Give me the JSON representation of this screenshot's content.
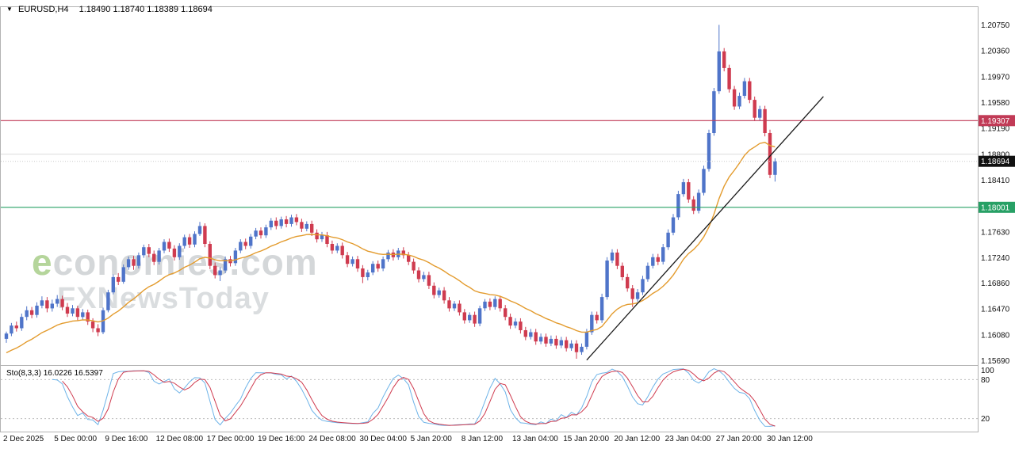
{
  "header": {
    "dropdown_icon": "▼",
    "symbol": "EURUSD,H4",
    "ohlc": "1.18490 1.18740 1.18389 1.18694"
  },
  "watermark": {
    "line1": "economies.com",
    "line2": "FXNewsToday"
  },
  "colors": {
    "up": "#4f74c9",
    "down": "#cf3b4f",
    "ma": "#e39b2d",
    "trendline": "#1a1a1a",
    "resistance": "#c13a56",
    "support": "#27a065",
    "current": "#111111",
    "grid": "#dcdcdc",
    "panel_border": "#b3b3b3",
    "stoch_k": "#6db3e8",
    "stoch_d": "#cf3b4f",
    "level": "#bdbdbd",
    "watermark": "#d5d8da"
  },
  "chart_data": {
    "type": "candlestick",
    "symbol": "EURUSD",
    "timeframe": "H4",
    "current_ohlc": {
      "open": "1.18490",
      "high": "1.18740",
      "low": "1.18389",
      "close": "1.18694"
    },
    "y_axis": {
      "min": 1.15625,
      "max": 1.21005,
      "tick_labels": [
        "1.20750",
        "1.20360",
        "1.19970",
        "1.19580",
        "1.19190",
        "1.18800",
        "1.18410",
        "1.17630",
        "1.17240",
        "1.16860",
        "1.16470",
        "1.16080",
        "1.15690"
      ]
    },
    "x_axis": {
      "label_every": 10,
      "labels": [
        "2 Dec 2025",
        "5 Dec 00:00",
        "9 Dec 16:00",
        "12 Dec 08:00",
        "17 Dec 00:00",
        "19 Dec 16:00",
        "24 Dec 08:00",
        "30 Dec 04:00",
        "5 Jan 20:00",
        "8 Jan 12:00",
        "13 Jan 04:00",
        "15 Jan 20:00",
        "20 Jan 12:00",
        "23 Jan 04:00",
        "27 Jan 20:00",
        "30 Jan 12:00"
      ]
    },
    "overlays": {
      "ema": {
        "period": 20,
        "seed": 1.1578
      },
      "trendline": {
        "bar1": 114,
        "price1": 1.157,
        "bar2": 160.5,
        "price2": 1.1967
      },
      "gridline_price": 1.188,
      "current_price": {
        "price": 1.18694,
        "label": "1.18694",
        "color": "#111111"
      },
      "hlines": [
        {
          "price": 1.19307,
          "label": "1.19307",
          "color": "#c13a56",
          "role": "resistance"
        },
        {
          "price": 1.18001,
          "label": "1.18001",
          "color": "#27a065",
          "role": "support"
        }
      ]
    },
    "indicator": {
      "name": "Sto(8,3,3)",
      "label": "Sto(8,3,3) 16.0226 16.5397",
      "k_value": 16.0226,
      "d_value": 16.5397,
      "k_period": 8,
      "d_period": 3,
      "slowing": 3,
      "levels": [
        100,
        80,
        20
      ]
    },
    "candles": [
      [
        1.1602,
        1.1613,
        1.1596,
        1.161
      ],
      [
        1.161,
        1.1626,
        1.1606,
        1.1622
      ],
      [
        1.1622,
        1.1628,
        1.1613,
        1.1618
      ],
      [
        1.1618,
        1.164,
        1.1614,
        1.1635
      ],
      [
        1.1635,
        1.1651,
        1.163,
        1.1645
      ],
      [
        1.1645,
        1.165,
        1.1633,
        1.1638
      ],
      [
        1.1638,
        1.1657,
        1.1634,
        1.1652
      ],
      [
        1.1652,
        1.1666,
        1.1648,
        1.166
      ],
      [
        1.166,
        1.1665,
        1.1642,
        1.1648
      ],
      [
        1.1648,
        1.1661,
        1.1643,
        1.1655
      ],
      [
        1.1655,
        1.1668,
        1.165,
        1.1662
      ],
      [
        1.1662,
        1.1667,
        1.1645,
        1.165
      ],
      [
        1.165,
        1.1656,
        1.1635,
        1.164
      ],
      [
        1.164,
        1.1653,
        1.1636,
        1.1648
      ],
      [
        1.1648,
        1.1652,
        1.163,
        1.1635
      ],
      [
        1.1635,
        1.1647,
        1.1631,
        1.1642
      ],
      [
        1.1642,
        1.1646,
        1.1623,
        1.1628
      ],
      [
        1.1628,
        1.1633,
        1.1612,
        1.1618
      ],
      [
        1.1618,
        1.1624,
        1.1606,
        1.1612
      ],
      [
        1.1612,
        1.1649,
        1.1609,
        1.1645
      ],
      [
        1.1645,
        1.1676,
        1.1642,
        1.1672
      ],
      [
        1.1672,
        1.1699,
        1.1669,
        1.1695
      ],
      [
        1.1695,
        1.1701,
        1.1683,
        1.1688
      ],
      [
        1.1688,
        1.1714,
        1.1685,
        1.171
      ],
      [
        1.171,
        1.1726,
        1.1706,
        1.1722
      ],
      [
        1.1722,
        1.1727,
        1.1706,
        1.1712
      ],
      [
        1.1712,
        1.1732,
        1.1708,
        1.1728
      ],
      [
        1.1728,
        1.1744,
        1.1724,
        1.174
      ],
      [
        1.174,
        1.1745,
        1.1725,
        1.173
      ],
      [
        1.173,
        1.1735,
        1.1713,
        1.1718
      ],
      [
        1.1718,
        1.1739,
        1.1714,
        1.1735
      ],
      [
        1.1735,
        1.1752,
        1.1731,
        1.1748
      ],
      [
        1.1748,
        1.1753,
        1.1733,
        1.1738
      ],
      [
        1.1738,
        1.1743,
        1.172,
        1.1725
      ],
      [
        1.1725,
        1.1746,
        1.1721,
        1.1742
      ],
      [
        1.1742,
        1.1759,
        1.1738,
        1.1755
      ],
      [
        1.1755,
        1.176,
        1.1739,
        1.1744
      ],
      [
        1.1744,
        1.1764,
        1.174,
        1.176
      ],
      [
        1.176,
        1.1778,
        1.1757,
        1.1772
      ],
      [
        1.1772,
        1.1776,
        1.174,
        1.1745
      ],
      [
        1.1745,
        1.1749,
        1.1707,
        1.1712
      ],
      [
        1.1712,
        1.1717,
        1.1693,
        1.1698
      ],
      [
        1.1698,
        1.171,
        1.1689,
        1.1705
      ],
      [
        1.1705,
        1.1726,
        1.1701,
        1.1722
      ],
      [
        1.1722,
        1.1727,
        1.1711,
        1.1716
      ],
      [
        1.1716,
        1.1739,
        1.1712,
        1.1735
      ],
      [
        1.1735,
        1.1752,
        1.1731,
        1.1748
      ],
      [
        1.1748,
        1.1753,
        1.1737,
        1.1742
      ],
      [
        1.1742,
        1.176,
        1.1738,
        1.1756
      ],
      [
        1.1756,
        1.1769,
        1.1752,
        1.1765
      ],
      [
        1.1765,
        1.177,
        1.1753,
        1.1758
      ],
      [
        1.1758,
        1.1774,
        1.1754,
        1.177
      ],
      [
        1.177,
        1.1784,
        1.1766,
        1.178
      ],
      [
        1.178,
        1.1785,
        1.1767,
        1.1772
      ],
      [
        1.1772,
        1.1786,
        1.1768,
        1.1782
      ],
      [
        1.1782,
        1.1787,
        1.177,
        1.1775
      ],
      [
        1.1775,
        1.1789,
        1.1771,
        1.1785
      ],
      [
        1.1785,
        1.179,
        1.1773,
        1.1778
      ],
      [
        1.1778,
        1.1783,
        1.1763,
        1.1768
      ],
      [
        1.1768,
        1.1779,
        1.1764,
        1.1775
      ],
      [
        1.1775,
        1.178,
        1.1757,
        1.1762
      ],
      [
        1.1762,
        1.1767,
        1.1747,
        1.1752
      ],
      [
        1.1752,
        1.1763,
        1.1748,
        1.1758
      ],
      [
        1.1758,
        1.1763,
        1.174,
        1.1745
      ],
      [
        1.1745,
        1.175,
        1.173,
        1.1735
      ],
      [
        1.1735,
        1.1746,
        1.1731,
        1.1742
      ],
      [
        1.1742,
        1.1747,
        1.1723,
        1.1728
      ],
      [
        1.1728,
        1.1733,
        1.171,
        1.1715
      ],
      [
        1.1715,
        1.1726,
        1.1711,
        1.1722
      ],
      [
        1.1722,
        1.1727,
        1.1703,
        1.1708
      ],
      [
        1.1708,
        1.1713,
        1.1686,
        1.1695
      ],
      [
        1.1695,
        1.1706,
        1.169,
        1.1702
      ],
      [
        1.1702,
        1.1719,
        1.1698,
        1.1715
      ],
      [
        1.1715,
        1.172,
        1.1703,
        1.1708
      ],
      [
        1.1708,
        1.1726,
        1.1704,
        1.1722
      ],
      [
        1.1722,
        1.1736,
        1.1718,
        1.1732
      ],
      [
        1.1732,
        1.1737,
        1.172,
        1.1725
      ],
      [
        1.1725,
        1.1739,
        1.1721,
        1.1735
      ],
      [
        1.1735,
        1.174,
        1.1723,
        1.1728
      ],
      [
        1.1728,
        1.1733,
        1.1713,
        1.1718
      ],
      [
        1.1718,
        1.1723,
        1.17,
        1.1705
      ],
      [
        1.1705,
        1.171,
        1.1687,
        1.1692
      ],
      [
        1.1692,
        1.1703,
        1.1688,
        1.1698
      ],
      [
        1.1698,
        1.1703,
        1.1677,
        1.1682
      ],
      [
        1.1682,
        1.1687,
        1.1663,
        1.1668
      ],
      [
        1.1668,
        1.1679,
        1.1664,
        1.1675
      ],
      [
        1.1675,
        1.168,
        1.1655,
        1.166
      ],
      [
        1.166,
        1.1665,
        1.1643,
        1.1648
      ],
      [
        1.1648,
        1.1659,
        1.1644,
        1.1655
      ],
      [
        1.1655,
        1.166,
        1.1637,
        1.1642
      ],
      [
        1.1642,
        1.1647,
        1.1625,
        1.163
      ],
      [
        1.163,
        1.1642,
        1.1626,
        1.1638
      ],
      [
        1.1638,
        1.1643,
        1.162,
        1.1625
      ],
      [
        1.1625,
        1.1652,
        1.1621,
        1.1648
      ],
      [
        1.1648,
        1.1662,
        1.1644,
        1.1658
      ],
      [
        1.1658,
        1.1663,
        1.1645,
        1.165
      ],
      [
        1.165,
        1.1666,
        1.1646,
        1.1662
      ],
      [
        1.1662,
        1.1667,
        1.1643,
        1.1648
      ],
      [
        1.1648,
        1.1653,
        1.163,
        1.1635
      ],
      [
        1.1635,
        1.164,
        1.1617,
        1.1622
      ],
      [
        1.1622,
        1.1633,
        1.1618,
        1.1628
      ],
      [
        1.1628,
        1.1633,
        1.161,
        1.1615
      ],
      [
        1.1615,
        1.162,
        1.16,
        1.1605
      ],
      [
        1.1605,
        1.1617,
        1.1601,
        1.1612
      ],
      [
        1.1612,
        1.1617,
        1.1593,
        1.1598
      ],
      [
        1.1598,
        1.161,
        1.1594,
        1.1605
      ],
      [
        1.1605,
        1.161,
        1.159,
        1.1595
      ],
      [
        1.1595,
        1.1607,
        1.1591,
        1.1602
      ],
      [
        1.1602,
        1.1607,
        1.1587,
        1.1592
      ],
      [
        1.1592,
        1.1605,
        1.1588,
        1.16
      ],
      [
        1.16,
        1.1605,
        1.1583,
        1.1588
      ],
      [
        1.1588,
        1.16,
        1.1584,
        1.1595
      ],
      [
        1.1595,
        1.16,
        1.1572,
        1.1582
      ],
      [
        1.1582,
        1.1595,
        1.1578,
        1.159
      ],
      [
        1.159,
        1.1617,
        1.1586,
        1.1612
      ],
      [
        1.1612,
        1.1643,
        1.1608,
        1.1638
      ],
      [
        1.1638,
        1.1643,
        1.1625,
        1.163
      ],
      [
        1.163,
        1.167,
        1.1626,
        1.1665
      ],
      [
        1.1665,
        1.1725,
        1.1661,
        1.172
      ],
      [
        1.172,
        1.1737,
        1.1716,
        1.1732
      ],
      [
        1.1732,
        1.1737,
        1.1707,
        1.1712
      ],
      [
        1.1712,
        1.1717,
        1.169,
        1.1695
      ],
      [
        1.1695,
        1.17,
        1.1673,
        1.1678
      ],
      [
        1.1678,
        1.1683,
        1.165,
        1.1662
      ],
      [
        1.1662,
        1.1677,
        1.1658,
        1.1672
      ],
      [
        1.1672,
        1.1697,
        1.1668,
        1.1692
      ],
      [
        1.1692,
        1.1717,
        1.1688,
        1.1712
      ],
      [
        1.1712,
        1.173,
        1.1708,
        1.1725
      ],
      [
        1.1725,
        1.173,
        1.1713,
        1.1718
      ],
      [
        1.1718,
        1.1745,
        1.1714,
        1.174
      ],
      [
        1.174,
        1.1767,
        1.1736,
        1.1762
      ],
      [
        1.1762,
        1.179,
        1.1758,
        1.1785
      ],
      [
        1.1785,
        1.1825,
        1.1781,
        1.182
      ],
      [
        1.182,
        1.1843,
        1.1816,
        1.1838
      ],
      [
        1.1838,
        1.1843,
        1.1807,
        1.1812
      ],
      [
        1.1812,
        1.1817,
        1.179,
        1.1795
      ],
      [
        1.1795,
        1.1827,
        1.1791,
        1.1822
      ],
      [
        1.1822,
        1.1863,
        1.1818,
        1.1858
      ],
      [
        1.1858,
        1.1917,
        1.1854,
        1.1912
      ],
      [
        1.1912,
        1.198,
        1.1908,
        1.1975
      ],
      [
        1.1975,
        1.2075,
        1.1971,
        1.2035
      ],
      [
        1.2035,
        1.204,
        1.2005,
        1.201
      ],
      [
        1.201,
        1.2015,
        1.1973,
        1.1978
      ],
      [
        1.1978,
        1.1983,
        1.1947,
        1.1952
      ],
      [
        1.1952,
        1.1973,
        1.1948,
        1.1968
      ],
      [
        1.1968,
        1.1995,
        1.1964,
        1.199
      ],
      [
        1.199,
        1.1995,
        1.1957,
        1.1962
      ],
      [
        1.1962,
        1.1967,
        1.193,
        1.1935
      ],
      [
        1.1935,
        1.1953,
        1.1931,
        1.1948
      ],
      [
        1.1948,
        1.1953,
        1.1907,
        1.1912
      ],
      [
        1.1912,
        1.1917,
        1.1844,
        1.1849
      ],
      [
        1.1849,
        1.1874,
        1.18389,
        1.18694
      ]
    ]
  }
}
